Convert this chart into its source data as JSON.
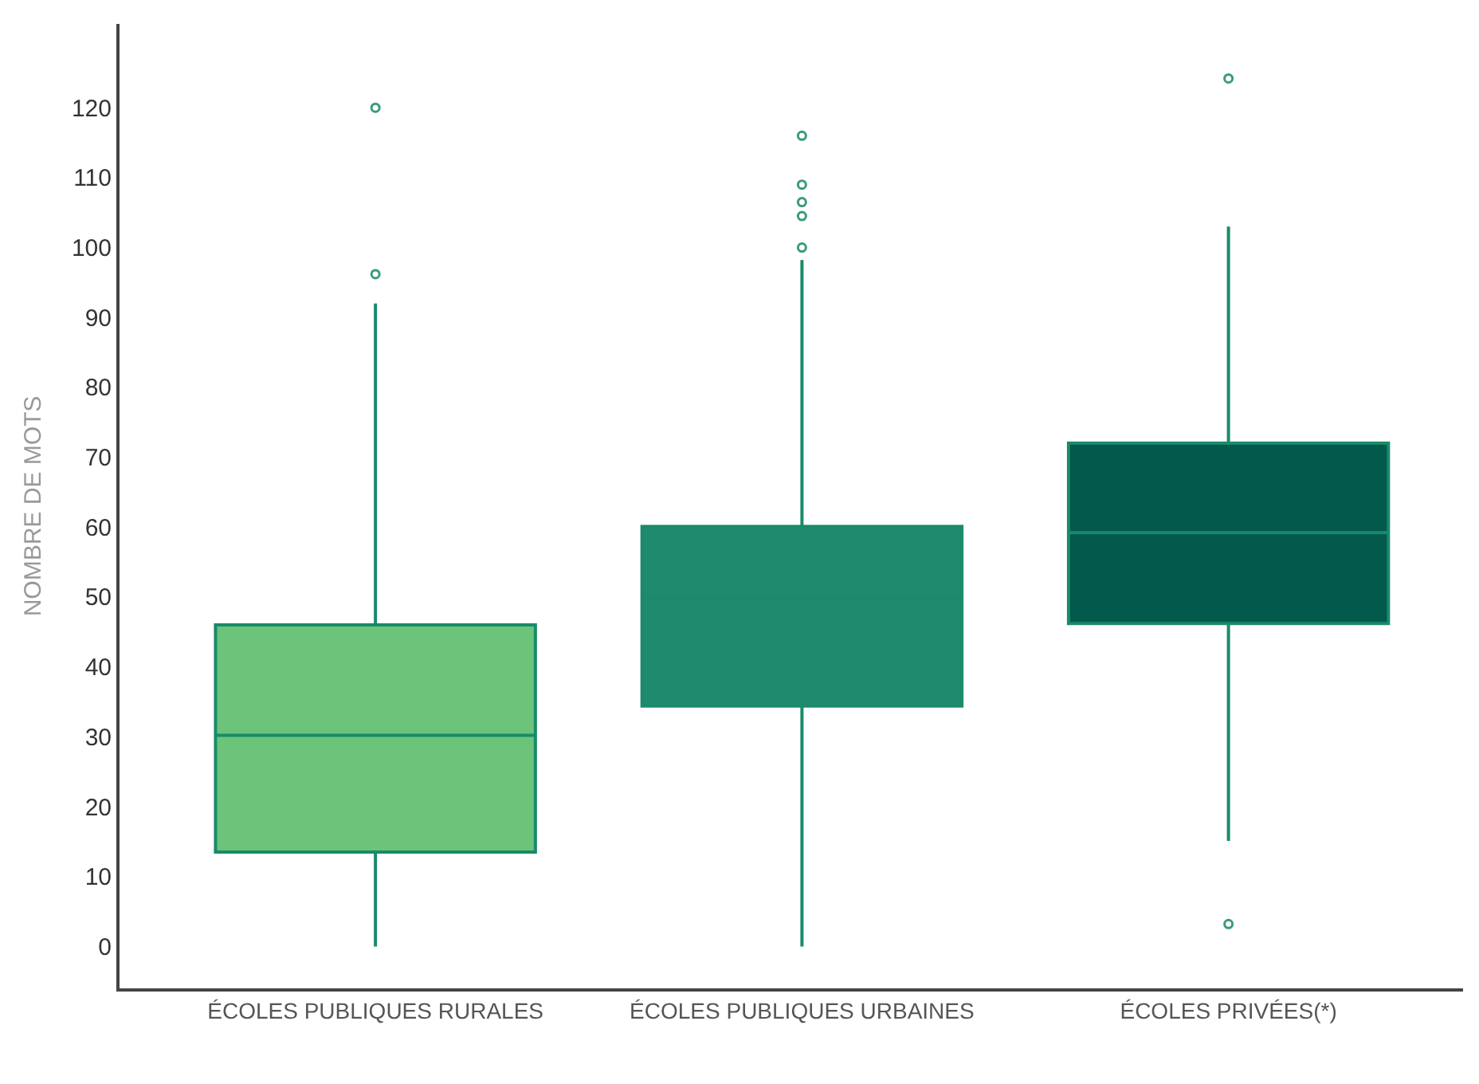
{
  "chart_data": {
    "type": "box",
    "ylabel": "NOMBRE DE MOTS",
    "categories": [
      "ÉCOLES PUBLIQUES RURALES",
      "ÉCOLES PUBLIQUES URBAINES",
      "ÉCOLES PRIVÉES(*)"
    ],
    "boxes": [
      {
        "low": 0,
        "q1": 13.5,
        "median": 30.2,
        "q3": 46,
        "high": 92,
        "outliers": [
          96.2,
          120
        ]
      },
      {
        "low": 0,
        "q1": 34.4,
        "median": 49.7,
        "q3": 60.1,
        "high": 98.2,
        "outliers": [
          100,
          104.5,
          106.5,
          109,
          116
        ]
      },
      {
        "low": 15.1,
        "q1": 46.2,
        "median": 59.2,
        "q3": 72,
        "high": 103,
        "outliers": [
          3.2,
          124.2
        ]
      }
    ],
    "colors": [
      "#6cc47a",
      "#1f8a6e",
      "#03594c"
    ],
    "ylim": [
      -6,
      132
    ],
    "yticks": [
      0,
      10,
      20,
      30,
      40,
      50,
      60,
      70,
      80,
      90,
      100,
      110,
      120
    ]
  }
}
